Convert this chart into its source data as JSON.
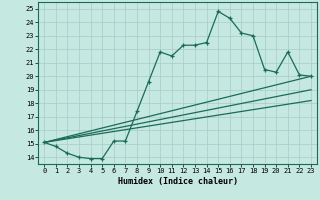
{
  "xlabel": "Humidex (Indice chaleur)",
  "xlim": [
    -0.5,
    23.5
  ],
  "ylim": [
    13.5,
    25.5
  ],
  "xticks": [
    0,
    1,
    2,
    3,
    4,
    5,
    6,
    7,
    8,
    9,
    10,
    11,
    12,
    13,
    14,
    15,
    16,
    17,
    18,
    19,
    20,
    21,
    22,
    23
  ],
  "yticks": [
    14,
    15,
    16,
    17,
    18,
    19,
    20,
    21,
    22,
    23,
    24,
    25
  ],
  "bg_color": "#c5e8e0",
  "line_color": "#1a6b5a",
  "grid_color": "#a8ccc5",
  "main_line": {
    "x": [
      0,
      1,
      2,
      3,
      4,
      5,
      6,
      7,
      8,
      9,
      10,
      11,
      12,
      13,
      14,
      15,
      16,
      17,
      18,
      19,
      20,
      21,
      22,
      23
    ],
    "y": [
      15.1,
      14.8,
      14.3,
      14.0,
      13.9,
      13.9,
      15.2,
      15.2,
      17.4,
      19.6,
      21.8,
      21.5,
      22.3,
      22.3,
      22.5,
      24.8,
      24.3,
      23.2,
      23.0,
      20.5,
      20.3,
      21.8,
      20.1,
      20.0
    ]
  },
  "trend_lines": [
    {
      "x": [
        0,
        23
      ],
      "y": [
        15.1,
        20.0
      ]
    },
    {
      "x": [
        0,
        23
      ],
      "y": [
        15.1,
        19.0
      ]
    },
    {
      "x": [
        0,
        23
      ],
      "y": [
        15.1,
        18.2
      ]
    }
  ]
}
